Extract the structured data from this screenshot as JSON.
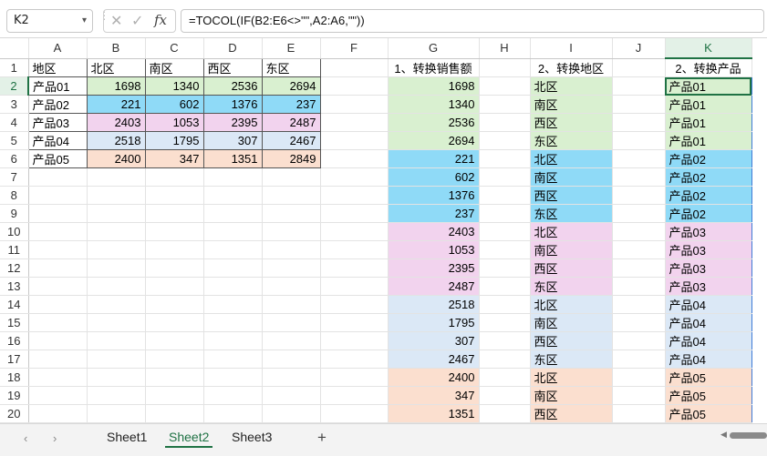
{
  "formula": {
    "cell_ref": "K2",
    "text": "=TOCOL(IF(B2:E6<>\"\",A2:A6,\"\"))"
  },
  "columns": [
    "A",
    "B",
    "C",
    "D",
    "E",
    "F",
    "G",
    "H",
    "I",
    "J",
    "K"
  ],
  "active_column": "K",
  "active_row": 2,
  "rows": [
    {
      "n": "1",
      "A": "地区",
      "B": "北区",
      "C": "南区",
      "D": "西区",
      "E": "东区",
      "G": "1、转换销售额",
      "I": "2、转换地区",
      "K": "2、转换产品"
    },
    {
      "n": "2",
      "A": "产品01",
      "B": "1698",
      "C": "1340",
      "D": "2536",
      "E": "2694",
      "G": "1698",
      "I": "北区",
      "K": "产品01"
    },
    {
      "n": "3",
      "A": "产品02",
      "B": "221",
      "C": "602",
      "D": "1376",
      "E": "237",
      "G": "1340",
      "I": "南区",
      "K": "产品01"
    },
    {
      "n": "4",
      "A": "产品03",
      "B": "2403",
      "C": "1053",
      "D": "2395",
      "E": "2487",
      "G": "2536",
      "I": "西区",
      "K": "产品01"
    },
    {
      "n": "5",
      "A": "产品04",
      "B": "2518",
      "C": "1795",
      "D": "307",
      "E": "2467",
      "G": "2694",
      "I": "东区",
      "K": "产品01"
    },
    {
      "n": "6",
      "A": "产品05",
      "B": "2400",
      "C": "347",
      "D": "1351",
      "E": "2849",
      "G": "221",
      "I": "北区",
      "K": "产品02"
    },
    {
      "n": "7",
      "G": "602",
      "I": "南区",
      "K": "产品02"
    },
    {
      "n": "8",
      "G": "1376",
      "I": "西区",
      "K": "产品02"
    },
    {
      "n": "9",
      "G": "237",
      "I": "东区",
      "K": "产品02"
    },
    {
      "n": "10",
      "G": "2403",
      "I": "北区",
      "K": "产品03"
    },
    {
      "n": "11",
      "G": "1053",
      "I": "南区",
      "K": "产品03"
    },
    {
      "n": "12",
      "G": "2395",
      "I": "西区",
      "K": "产品03"
    },
    {
      "n": "13",
      "G": "2487",
      "I": "东区",
      "K": "产品03"
    },
    {
      "n": "14",
      "G": "2518",
      "I": "北区",
      "K": "产品04"
    },
    {
      "n": "15",
      "G": "1795",
      "I": "南区",
      "K": "产品04"
    },
    {
      "n": "16",
      "G": "307",
      "I": "西区",
      "K": "产品04"
    },
    {
      "n": "17",
      "G": "2467",
      "I": "东区",
      "K": "产品04"
    },
    {
      "n": "18",
      "G": "2400",
      "I": "北区",
      "K": "产品05"
    },
    {
      "n": "19",
      "G": "347",
      "I": "南区",
      "K": "产品05"
    },
    {
      "n": "20",
      "G": "1351",
      "I": "西区",
      "K": "产品05"
    }
  ],
  "sheets": {
    "tabs": [
      "Sheet1",
      "Sheet2",
      "Sheet3"
    ],
    "active": "Sheet2",
    "add_label": "+"
  },
  "colors": {
    "green": "#d9f0d0",
    "blue": "#8fdaf7",
    "pink": "#f2d3ee",
    "lightblue": "#dbe8f6",
    "peach": "#fbdfcf",
    "accent": "#1f7244"
  }
}
